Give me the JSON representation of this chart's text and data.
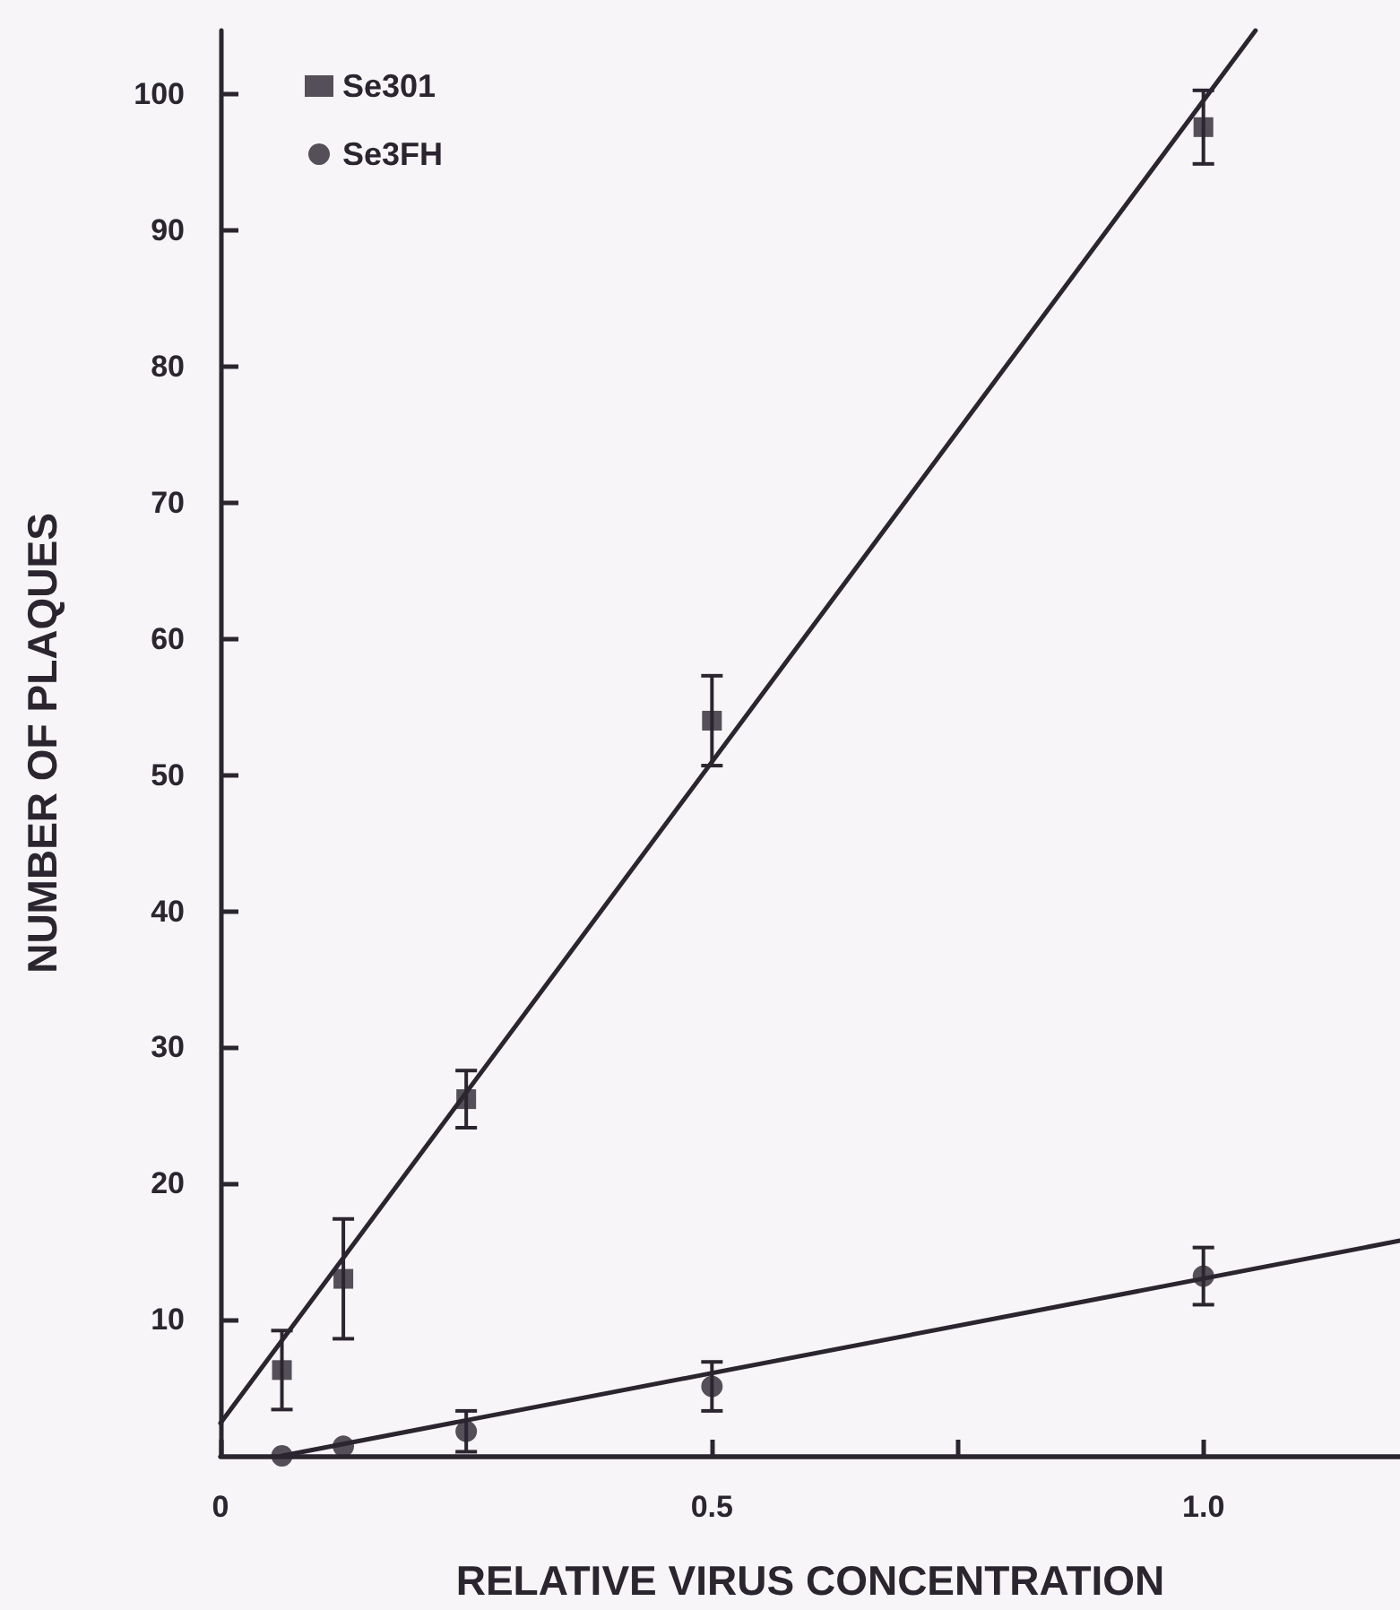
{
  "chart_data": {
    "type": "scatter",
    "xlabel": "RELATIVE VIRUS CONCENTRATION",
    "ylabel": "NUMBER OF PLAQUES",
    "xlim": [
      0,
      1.2
    ],
    "ylim": [
      0,
      104.7
    ],
    "xticks": [
      0,
      0.5,
      {
        "value": 0.75,
        "label": null
      },
      {
        "value": 1,
        "label": "1.0"
      }
    ],
    "yticks": [
      10,
      20,
      30,
      40,
      50,
      60,
      70,
      80,
      90,
      100
    ],
    "grid": false,
    "legend": "top left",
    "series": [
      {
        "name": "Se301",
        "marker": "square",
        "color": "#2b2530",
        "x": [
          0.0625,
          0.125,
          0.25,
          0.5,
          1.0
        ],
        "values": [
          6.3,
          13.0,
          26.2,
          54.0,
          97.6
        ],
        "errors": [
          2.9,
          4.4,
          2.1,
          3.3,
          2.7
        ]
      },
      {
        "name": "Se3FH",
        "marker": "circle",
        "color": "#2b2530",
        "x": [
          0.0625,
          0.125,
          0.25,
          0.5,
          1.0
        ],
        "values": [
          0,
          0.7,
          1.8,
          5.1,
          13.2
        ],
        "errors": [
          null,
          null,
          1.5,
          1.8,
          2.1
        ]
      },
      {
        "type": "line",
        "marker": "none",
        "line_style": "solid",
        "color": "#2b2530",
        "x": [
          0,
          1.053
        ],
        "values": [
          2.4,
          104.7
        ]
      },
      {
        "type": "line",
        "marker": "none",
        "line_style": "solid",
        "color": "#2b2530",
        "x": [
          0.0625,
          1.2
        ],
        "values": [
          0,
          15.8
        ]
      }
    ]
  }
}
